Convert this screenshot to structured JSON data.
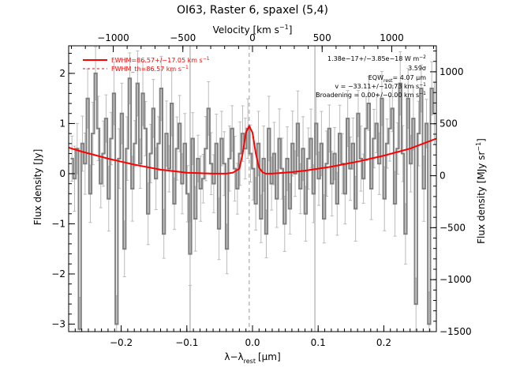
{
  "chart_data": {
    "type": "line",
    "title": "OI63, Raster 6, spaxel (5,4)",
    "xlabel": "λ−λ",
    "xlabel_sub": "rest",
    "xlabel_unit": "[μm]",
    "ylabel": "Flux density [Jy]",
    "top_xlabel": "Velocity [km s",
    "top_xlabel_sup": "−1",
    "top_xlabel_end": "]",
    "right_ylabel": "Flux density [MJy sr",
    "right_ylabel_sup": "−1",
    "right_ylabel_end": "]",
    "xlim": [
      -0.28,
      0.28
    ],
    "ylim": [
      -3.15,
      2.55
    ],
    "top_xlim": [
      -1320,
      1320
    ],
    "right_ylim": [
      -1500,
      1250
    ],
    "x_ticks": [
      -0.2,
      -0.1,
      0.0,
      0.1,
      0.2
    ],
    "x_tick_labels": [
      "−0.2",
      "−0.1",
      "0.0",
      "0.1",
      "0.2"
    ],
    "y_ticks": [
      -3,
      -2,
      -1,
      0,
      1,
      2
    ],
    "y_tick_labels": [
      "−3",
      "−2",
      "−1",
      "0",
      "1",
      "2"
    ],
    "top_ticks": [
      -1000,
      -500,
      0,
      500,
      1000
    ],
    "top_tick_labels": [
      "−1000",
      "−500",
      "0",
      "500",
      "1000"
    ],
    "right_ticks": [
      -1500,
      -1000,
      -500,
      0,
      500,
      1000
    ],
    "right_tick_labels": [
      "−1500",
      "−1000",
      "−500",
      "0",
      "500",
      "1000"
    ],
    "vertical_lines": [
      {
        "x": -0.095,
        "style": "solid"
      },
      {
        "x": -0.005,
        "style": "dashed"
      },
      {
        "x": 0.095,
        "style": "solid"
      }
    ],
    "legend": [
      {
        "label": "FWHM=86.57+/−17.05 km s",
        "sup": "−1",
        "style": "solid"
      },
      {
        "label": "FWHM_th=86.57 km s",
        "sup": "−1",
        "style": "dashed"
      }
    ],
    "annotations": [
      "1.38e−17+/−3.85e−18 W m",
      "3.59σ",
      "EQW",
      "rest",
      "= 4.07 μm",
      "v = −33.11+/−10.73 km s",
      "Broadening = 0.00+/−0.00 km s"
    ],
    "annotation_sups": [
      "−2",
      "−1",
      "−1"
    ],
    "series": [
      {
        "name": "data",
        "color": "#808080",
        "style": "steps",
        "x": [
          -0.275,
          -0.271,
          -0.267,
          -0.263,
          -0.259,
          -0.255,
          -0.251,
          -0.247,
          -0.243,
          -0.239,
          -0.235,
          -0.231,
          -0.227,
          -0.223,
          -0.219,
          -0.215,
          -0.211,
          -0.207,
          -0.203,
          -0.199,
          -0.195,
          -0.191,
          -0.187,
          -0.183,
          -0.179,
          -0.175,
          -0.171,
          -0.167,
          -0.163,
          -0.159,
          -0.155,
          -0.151,
          -0.147,
          -0.143,
          -0.139,
          -0.135,
          -0.131,
          -0.127,
          -0.123,
          -0.119,
          -0.115,
          -0.111,
          -0.107,
          -0.103,
          -0.099,
          -0.095,
          -0.091,
          -0.087,
          -0.083,
          -0.079,
          -0.075,
          -0.071,
          -0.067,
          -0.063,
          -0.059,
          -0.055,
          -0.051,
          -0.047,
          -0.043,
          -0.039,
          -0.035,
          -0.031,
          -0.027,
          -0.023,
          -0.019,
          -0.015,
          -0.011,
          -0.007,
          -0.003,
          0.001,
          0.005,
          0.009,
          0.013,
          0.017,
          0.021,
          0.025,
          0.029,
          0.033,
          0.037,
          0.041,
          0.045,
          0.049,
          0.053,
          0.057,
          0.061,
          0.065,
          0.069,
          0.073,
          0.077,
          0.081,
          0.085,
          0.089,
          0.093,
          0.097,
          0.101,
          0.105,
          0.109,
          0.113,
          0.117,
          0.121,
          0.125,
          0.129,
          0.133,
          0.137,
          0.141,
          0.145,
          0.149,
          0.153,
          0.157,
          0.161,
          0.165,
          0.169,
          0.173,
          0.177,
          0.181,
          0.185,
          0.189,
          0.193,
          0.197,
          0.201,
          0.205,
          0.209,
          0.213,
          0.217,
          0.221,
          0.225,
          0.229,
          0.233,
          0.237,
          0.241,
          0.245,
          0.249,
          0.253,
          0.257,
          0.261,
          0.265,
          0.269,
          0.273,
          0.277
        ],
        "y": [
          0.3,
          -0.1,
          0.5,
          -3.1,
          0.6,
          0.2,
          1.5,
          -0.4,
          0.8,
          2.0,
          0.9,
          -0.2,
          0.4,
          1.1,
          -0.5,
          0.7,
          1.6,
          -3.0,
          0.3,
          1.2,
          -1.5,
          0.5,
          1.9,
          -0.3,
          0.6,
          1.8,
          0.2,
          1.6,
          0.9,
          -0.8,
          0.4,
          1.3,
          -0.1,
          0.6,
          1.7,
          -1.2,
          0.8,
          0.1,
          1.4,
          -0.6,
          0.5,
          1.0,
          -0.2,
          0.6,
          -0.4,
          -1.6,
          0.7,
          -0.9,
          0.3,
          -0.3,
          -0.1,
          0.5,
          1.3,
          0.2,
          -0.2,
          0.6,
          -1.1,
          0.7,
          0.2,
          -1.5,
          0.3,
          0.9,
          0.1,
          -0.3,
          0.4,
          0.8,
          0.5,
          0.9,
          0.4,
          0.1,
          -0.6,
          0.6,
          -0.9,
          0.3,
          -1.2,
          0.9,
          -0.2,
          0.4,
          -0.5,
          0.7,
          0.1,
          -1.0,
          0.3,
          -0.7,
          0.6,
          0.0,
          1.0,
          -0.3,
          0.5,
          -0.8,
          0.3,
          0.7,
          -0.4,
          1.0,
          -0.1,
          0.6,
          -0.9,
          0.2,
          0.9,
          -0.2,
          0.4,
          -0.6,
          0.8,
          0.2,
          -0.4,
          1.1,
          0.1,
          0.6,
          -0.7,
          1.2,
          0.3,
          -0.1,
          0.9,
          1.4,
          -0.3,
          0.7,
          1.0,
          0.2,
          1.5,
          -0.5,
          0.6,
          0.9,
          1.3,
          -0.6,
          0.5,
          1.8,
          0.4,
          -1.2,
          1.5,
          0.2,
          1.1,
          -2.6,
          0.8,
          1.7,
          -0.3,
          1.0,
          -3.0,
          1.7,
          1.2
        ]
      },
      {
        "name": "continuum + line fit",
        "color": "#ff0000",
        "style": "solid",
        "x": [
          -0.28,
          -0.26,
          -0.24,
          -0.22,
          -0.2,
          -0.18,
          -0.16,
          -0.14,
          -0.12,
          -0.1,
          -0.08,
          -0.06,
          -0.04,
          -0.03,
          -0.02,
          -0.015,
          -0.01,
          -0.005,
          0.0,
          0.005,
          0.01,
          0.015,
          0.02,
          0.03,
          0.04,
          0.06,
          0.08,
          0.1,
          0.12,
          0.14,
          0.16,
          0.18,
          0.2,
          0.22,
          0.24,
          0.26,
          0.28
        ],
        "y": [
          0.52,
          0.44,
          0.37,
          0.3,
          0.24,
          0.18,
          0.13,
          0.08,
          0.05,
          0.02,
          0.01,
          0.0,
          0.0,
          0.02,
          0.1,
          0.4,
          0.82,
          0.95,
          0.82,
          0.4,
          0.12,
          0.03,
          0.0,
          0.0,
          0.01,
          0.03,
          0.06,
          0.1,
          0.14,
          0.19,
          0.24,
          0.3,
          0.36,
          0.43,
          0.5,
          0.6,
          0.7
        ]
      }
    ]
  }
}
